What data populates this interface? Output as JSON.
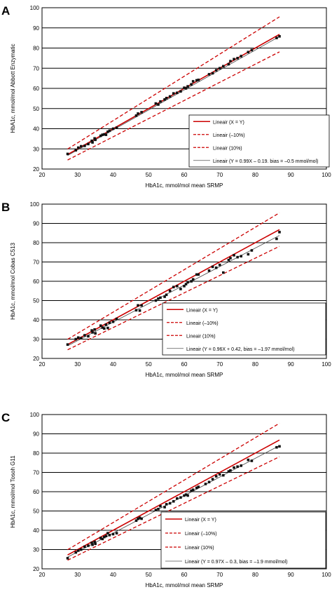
{
  "chart_data": [
    {
      "panel_label": "A",
      "type": "scatter",
      "xlabel": "HbA1c, mmol/mol  mean SRMP",
      "ylabel": "HbA1c, mmol/mol  Abbott Enzymatic",
      "xlim": [
        20,
        100
      ],
      "ylim": [
        20,
        100
      ],
      "xticks": [
        "20",
        "30",
        "40",
        "50",
        "60",
        "70",
        "80",
        "90",
        "100"
      ],
      "yticks": [
        "20",
        "30",
        "40",
        "50",
        "60",
        "70",
        "80",
        "90",
        "100"
      ],
      "grid": "horizontal",
      "legend_position": "bottom-right",
      "legend": [
        {
          "label": "Lineair (X = Y)",
          "style": "solid",
          "color": "#cc0000"
        },
        {
          "label": "Lineair (–10%)",
          "style": "dashed",
          "color": "#cc0000"
        },
        {
          "label": "Lineair (10%)",
          "style": "dashed",
          "color": "#cc0000"
        },
        {
          "label": "Lineair (Y = 0.99X – 0.19. bias = –0.5 mmol/mol)",
          "style": "solid-thin",
          "color": "#555555"
        }
      ],
      "regression": {
        "slope": 0.99,
        "intercept": -0.19
      },
      "points": [
        [
          27.2,
          27.5
        ],
        [
          29.5,
          29.3
        ],
        [
          30.2,
          30.6
        ],
        [
          31.0,
          31.3
        ],
        [
          32.0,
          31.5
        ],
        [
          33.0,
          32.4
        ],
        [
          34.0,
          34.0
        ],
        [
          34.2,
          33.2
        ],
        [
          34.8,
          35.2
        ],
        [
          35.0,
          34.5
        ],
        [
          36.5,
          36.5
        ],
        [
          37.0,
          37.0
        ],
        [
          37.5,
          37.2
        ],
        [
          38.0,
          37.0
        ],
        [
          38.5,
          38.5
        ],
        [
          39.0,
          39.0
        ],
        [
          40.0,
          40.0
        ],
        [
          41.0,
          40.5
        ],
        [
          46.5,
          46.5
        ],
        [
          47.0,
          47.5
        ],
        [
          48.0,
          48.2
        ],
        [
          52.0,
          52.5
        ],
        [
          52.7,
          52.0
        ],
        [
          53.3,
          53.5
        ],
        [
          54.5,
          54.5
        ],
        [
          55.0,
          55.2
        ],
        [
          56.0,
          56.0
        ],
        [
          57.0,
          57.5
        ],
        [
          58.0,
          57.8
        ],
        [
          59.0,
          58.5
        ],
        [
          60.0,
          60.3
        ],
        [
          60.5,
          60.0
        ],
        [
          61.0,
          61.0
        ],
        [
          62.0,
          62.0
        ],
        [
          62.5,
          63.5
        ],
        [
          63.5,
          64.0
        ],
        [
          64.0,
          64.2
        ],
        [
          67.0,
          67.0
        ],
        [
          68.0,
          67.5
        ],
        [
          69.0,
          69.0
        ],
        [
          70.0,
          70.0
        ],
        [
          71.0,
          71.0
        ],
        [
          72.5,
          72.0
        ],
        [
          73.0,
          73.5
        ],
        [
          74.0,
          74.5
        ],
        [
          75.0,
          75.0
        ],
        [
          76.0,
          76.0
        ],
        [
          78.0,
          78.0
        ],
        [
          79.0,
          79.0
        ],
        [
          86.0,
          85.0
        ],
        [
          86.8,
          85.8
        ]
      ]
    },
    {
      "panel_label": "B",
      "type": "scatter",
      "xlabel": "HbA1c, mmol/mol  mean SRMP",
      "ylabel": "HbA1c, mmol/mol Cobas C513",
      "xlim": [
        20,
        100
      ],
      "ylim": [
        20,
        100
      ],
      "xticks": [
        "20",
        "30",
        "40",
        "50",
        "60",
        "70",
        "80",
        "90",
        "100"
      ],
      "yticks": [
        "20",
        "30",
        "40",
        "50",
        "60",
        "70",
        "80",
        "90",
        "100"
      ],
      "grid": "horizontal",
      "legend_position": "bottom-right",
      "legend": [
        {
          "label": "Lineair (X = Y)",
          "style": "solid",
          "color": "#cc0000"
        },
        {
          "label": "Lineair (–10%)",
          "style": "dashed",
          "color": "#cc0000"
        },
        {
          "label": "Lineair (10%)",
          "style": "dashed",
          "color": "#cc0000"
        },
        {
          "label": "Lineair (Y = 0.96X + 0.42, bias = –1.97 mmol/mol)",
          "style": "solid-thin",
          "color": "#555555"
        }
      ],
      "regression": {
        "slope": 0.96,
        "intercept": 0.42
      },
      "points": [
        [
          27.2,
          27.2
        ],
        [
          29.5,
          30.0
        ],
        [
          30.2,
          30.8
        ],
        [
          31.0,
          30.5
        ],
        [
          32.0,
          32.0
        ],
        [
          33.0,
          31.5
        ],
        [
          34.0,
          34.5
        ],
        [
          34.2,
          33.5
        ],
        [
          34.8,
          35.0
        ],
        [
          35.0,
          33.0
        ],
        [
          36.5,
          37.0
        ],
        [
          37.0,
          36.0
        ],
        [
          37.5,
          35.5
        ],
        [
          38.0,
          37.5
        ],
        [
          38.5,
          35.8
        ],
        [
          39.0,
          38.5
        ],
        [
          40.0,
          39.0
        ],
        [
          41.0,
          40.5
        ],
        [
          46.5,
          45.0
        ],
        [
          47.0,
          47.5
        ],
        [
          47.5,
          44.8
        ],
        [
          48.0,
          47.5
        ],
        [
          52.0,
          50.0
        ],
        [
          52.7,
          51.0
        ],
        [
          53.3,
          51.5
        ],
        [
          54.5,
          52.0
        ],
        [
          55.0,
          53.0
        ],
        [
          56.0,
          55.0
        ],
        [
          57.0,
          57.0
        ],
        [
          58.0,
          57.5
        ],
        [
          59.0,
          56.0
        ],
        [
          60.0,
          57.5
        ],
        [
          60.5,
          58.5
        ],
        [
          61.0,
          59.5
        ],
        [
          62.0,
          60.0
        ],
        [
          62.5,
          61.0
        ],
        [
          63.5,
          63.5
        ],
        [
          64.0,
          63.5
        ],
        [
          67.0,
          65.5
        ],
        [
          68.0,
          67.5
        ],
        [
          69.0,
          67.0
        ],
        [
          70.0,
          68.5
        ],
        [
          71.0,
          64.5
        ],
        [
          72.5,
          71.0
        ],
        [
          73.0,
          72.0
        ],
        [
          74.0,
          73.5
        ],
        [
          75.0,
          72.5
        ],
        [
          76.0,
          73.0
        ],
        [
          78.0,
          74.0
        ],
        [
          79.0,
          76.0
        ],
        [
          86.0,
          82.0
        ],
        [
          86.8,
          85.5
        ]
      ]
    },
    {
      "panel_label": "C",
      "type": "scatter",
      "xlabel": "HbA1c, mmol/mol  mean SRMP",
      "ylabel": "HbA1c, mmol/mol  Tosoh G11",
      "xlim": [
        20,
        100
      ],
      "ylim": [
        20,
        100
      ],
      "xticks": [
        "20",
        "30",
        "40",
        "50",
        "60",
        "70",
        "80",
        "90",
        "100"
      ],
      "yticks": [
        "20",
        "30",
        "40",
        "50",
        "60",
        "70",
        "80",
        "90",
        "100"
      ],
      "grid": "horizontal",
      "legend_position": "bottom-right",
      "legend": [
        {
          "label": "Lineair (X = Y)",
          "style": "solid",
          "color": "#cc0000"
        },
        {
          "label": "Lineair (–10%)",
          "style": "dashed",
          "color": "#cc0000"
        },
        {
          "label": "Lineair (10%)",
          "style": "dashed",
          "color": "#cc0000"
        },
        {
          "label": "Lineair (Y = 0.97X – 0.3, bias = –1.9 mmol/mol)",
          "style": "solid-thin",
          "color": "#555555"
        }
      ],
      "regression": {
        "slope": 0.97,
        "intercept": -0.3
      },
      "points": [
        [
          27.2,
          25.5
        ],
        [
          29.5,
          28.5
        ],
        [
          30.2,
          29.5
        ],
        [
          31.0,
          30.0
        ],
        [
          32.0,
          31.5
        ],
        [
          33.0,
          32.0
        ],
        [
          34.0,
          33.5
        ],
        [
          34.2,
          32.5
        ],
        [
          34.8,
          34.0
        ],
        [
          35.0,
          33.0
        ],
        [
          36.5,
          36.0
        ],
        [
          37.0,
          35.5
        ],
        [
          37.5,
          36.5
        ],
        [
          38.0,
          37.0
        ],
        [
          38.5,
          38.5
        ],
        [
          39.0,
          37.5
        ],
        [
          40.0,
          38.0
        ],
        [
          41.0,
          38.5
        ],
        [
          46.5,
          45.0
        ],
        [
          47.0,
          46.0
        ],
        [
          47.5,
          46.5
        ],
        [
          48.0,
          46.0
        ],
        [
          52.0,
          50.5
        ],
        [
          52.7,
          51.0
        ],
        [
          53.3,
          52.5
        ],
        [
          54.5,
          52.0
        ],
        [
          55.0,
          53.5
        ],
        [
          56.0,
          54.0
        ],
        [
          57.0,
          55.0
        ],
        [
          58.0,
          56.5
        ],
        [
          59.0,
          57.0
        ],
        [
          60.0,
          58.0
        ],
        [
          60.5,
          58.5
        ],
        [
          61.0,
          58.0
        ],
        [
          62.0,
          60.5
        ],
        [
          62.5,
          61.0
        ],
        [
          63.5,
          62.0
        ],
        [
          64.0,
          62.5
        ],
        [
          66.0,
          64.0
        ],
        [
          67.0,
          65.0
        ],
        [
          68.0,
          66.5
        ],
        [
          69.0,
          68.0
        ],
        [
          70.0,
          69.0
        ],
        [
          71.0,
          68.5
        ],
        [
          72.5,
          70.5
        ],
        [
          73.0,
          71.0
        ],
        [
          74.0,
          72.5
        ],
        [
          75.0,
          73.0
        ],
        [
          76.0,
          73.5
        ],
        [
          78.0,
          76.5
        ],
        [
          79.0,
          76.0
        ],
        [
          86.0,
          83.0
        ],
        [
          86.8,
          83.5
        ]
      ]
    }
  ]
}
